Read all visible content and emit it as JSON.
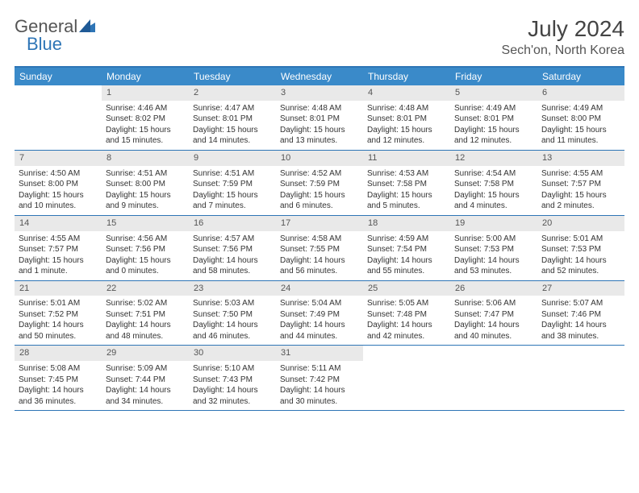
{
  "brand": {
    "part1": "General",
    "part2": "Blue"
  },
  "title": "July 2024",
  "location": "Sech'on, North Korea",
  "colors": {
    "header_bg": "#3a8ac9",
    "border": "#2e75b6",
    "daynum_bg": "#e9e9e9",
    "text": "#333333",
    "muted": "#555555"
  },
  "weekdays": [
    "Sunday",
    "Monday",
    "Tuesday",
    "Wednesday",
    "Thursday",
    "Friday",
    "Saturday"
  ],
  "grid": {
    "rows": 5,
    "cols": 7,
    "first_day_col": 1,
    "days_in_month": 31
  },
  "days": {
    "1": {
      "sunrise": "4:46 AM",
      "sunset": "8:02 PM",
      "daylight": "15 hours and 15 minutes."
    },
    "2": {
      "sunrise": "4:47 AM",
      "sunset": "8:01 PM",
      "daylight": "15 hours and 14 minutes."
    },
    "3": {
      "sunrise": "4:48 AM",
      "sunset": "8:01 PM",
      "daylight": "15 hours and 13 minutes."
    },
    "4": {
      "sunrise": "4:48 AM",
      "sunset": "8:01 PM",
      "daylight": "15 hours and 12 minutes."
    },
    "5": {
      "sunrise": "4:49 AM",
      "sunset": "8:01 PM",
      "daylight": "15 hours and 12 minutes."
    },
    "6": {
      "sunrise": "4:49 AM",
      "sunset": "8:00 PM",
      "daylight": "15 hours and 11 minutes."
    },
    "7": {
      "sunrise": "4:50 AM",
      "sunset": "8:00 PM",
      "daylight": "15 hours and 10 minutes."
    },
    "8": {
      "sunrise": "4:51 AM",
      "sunset": "8:00 PM",
      "daylight": "15 hours and 9 minutes."
    },
    "9": {
      "sunrise": "4:51 AM",
      "sunset": "7:59 PM",
      "daylight": "15 hours and 7 minutes."
    },
    "10": {
      "sunrise": "4:52 AM",
      "sunset": "7:59 PM",
      "daylight": "15 hours and 6 minutes."
    },
    "11": {
      "sunrise": "4:53 AM",
      "sunset": "7:58 PM",
      "daylight": "15 hours and 5 minutes."
    },
    "12": {
      "sunrise": "4:54 AM",
      "sunset": "7:58 PM",
      "daylight": "15 hours and 4 minutes."
    },
    "13": {
      "sunrise": "4:55 AM",
      "sunset": "7:57 PM",
      "daylight": "15 hours and 2 minutes."
    },
    "14": {
      "sunrise": "4:55 AM",
      "sunset": "7:57 PM",
      "daylight": "15 hours and 1 minute."
    },
    "15": {
      "sunrise": "4:56 AM",
      "sunset": "7:56 PM",
      "daylight": "15 hours and 0 minutes."
    },
    "16": {
      "sunrise": "4:57 AM",
      "sunset": "7:56 PM",
      "daylight": "14 hours and 58 minutes."
    },
    "17": {
      "sunrise": "4:58 AM",
      "sunset": "7:55 PM",
      "daylight": "14 hours and 56 minutes."
    },
    "18": {
      "sunrise": "4:59 AM",
      "sunset": "7:54 PM",
      "daylight": "14 hours and 55 minutes."
    },
    "19": {
      "sunrise": "5:00 AM",
      "sunset": "7:53 PM",
      "daylight": "14 hours and 53 minutes."
    },
    "20": {
      "sunrise": "5:01 AM",
      "sunset": "7:53 PM",
      "daylight": "14 hours and 52 minutes."
    },
    "21": {
      "sunrise": "5:01 AM",
      "sunset": "7:52 PM",
      "daylight": "14 hours and 50 minutes."
    },
    "22": {
      "sunrise": "5:02 AM",
      "sunset": "7:51 PM",
      "daylight": "14 hours and 48 minutes."
    },
    "23": {
      "sunrise": "5:03 AM",
      "sunset": "7:50 PM",
      "daylight": "14 hours and 46 minutes."
    },
    "24": {
      "sunrise": "5:04 AM",
      "sunset": "7:49 PM",
      "daylight": "14 hours and 44 minutes."
    },
    "25": {
      "sunrise": "5:05 AM",
      "sunset": "7:48 PM",
      "daylight": "14 hours and 42 minutes."
    },
    "26": {
      "sunrise": "5:06 AM",
      "sunset": "7:47 PM",
      "daylight": "14 hours and 40 minutes."
    },
    "27": {
      "sunrise": "5:07 AM",
      "sunset": "7:46 PM",
      "daylight": "14 hours and 38 minutes."
    },
    "28": {
      "sunrise": "5:08 AM",
      "sunset": "7:45 PM",
      "daylight": "14 hours and 36 minutes."
    },
    "29": {
      "sunrise": "5:09 AM",
      "sunset": "7:44 PM",
      "daylight": "14 hours and 34 minutes."
    },
    "30": {
      "sunrise": "5:10 AM",
      "sunset": "7:43 PM",
      "daylight": "14 hours and 32 minutes."
    },
    "31": {
      "sunrise": "5:11 AM",
      "sunset": "7:42 PM",
      "daylight": "14 hours and 30 minutes."
    }
  },
  "labels": {
    "sunrise": "Sunrise:",
    "sunset": "Sunset:",
    "daylight": "Daylight:"
  }
}
